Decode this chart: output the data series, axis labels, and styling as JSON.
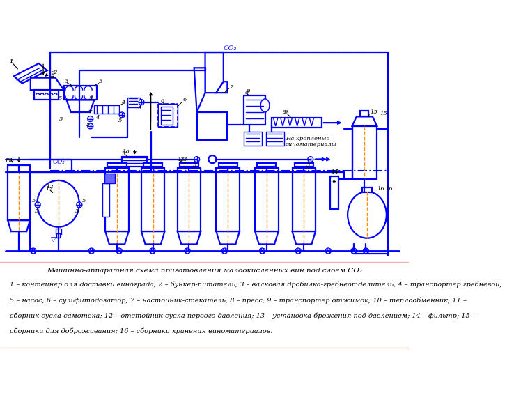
{
  "title": "Машинно-аппаратная схема приготовления малоокисленных вин под слоем СО₂",
  "legend_lines": [
    "1 – контейнер для доставки винограда; 2 – бункер-питатель; 3 – валковая дробилка-гребнеотделитель; 4 – транспортер гребневой;",
    "5 – насос; 6 – сульфитодозатор; 7 – настойник-стекатель; 8 – пресс; 9 – транспортер отжимок; 10 – теплообменник; 11 –",
    "сборник сусла-самотека; 12 – отстойник сусла первого давления; 13 – установка брожения под давлением; 14 – фильтр; 15 –",
    "сборники для доброживания; 16 – сборники хранения виноматериалов."
  ],
  "bg_color": "#ffffff",
  "blue": "#0000ff",
  "orange": "#ff8c00",
  "black": "#000000"
}
